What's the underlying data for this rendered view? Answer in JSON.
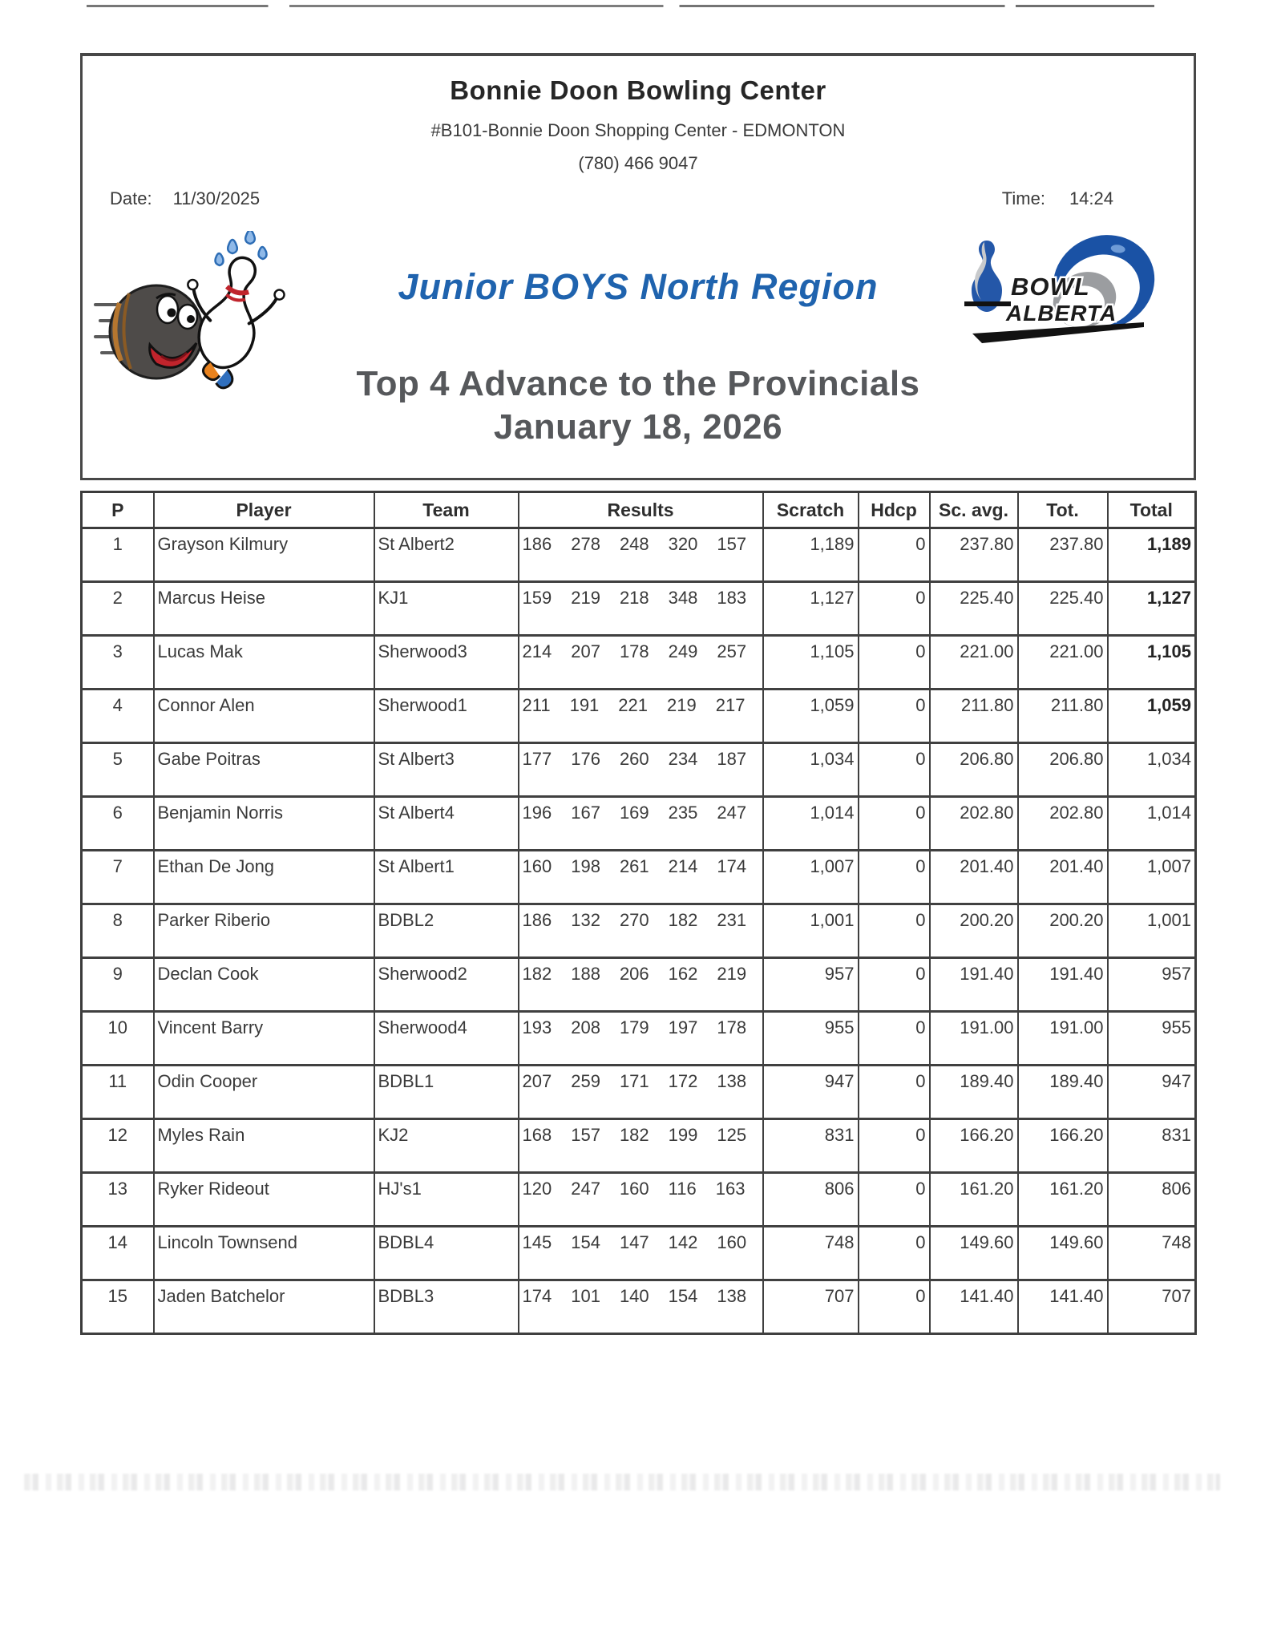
{
  "document": {
    "facility": {
      "name": "Bonnie Doon Bowling Center",
      "address": "#B101-Bonnie Doon Shopping Center - EDMONTON",
      "phone": "(780) 466 9047"
    },
    "meta": {
      "date_label": "Date:",
      "date_value": "11/30/2025",
      "time_label": "Time:",
      "time_value": "14:24"
    },
    "event_title": "Junior BOYS North Region",
    "announcement": {
      "line1": "Top 4 Advance to the Provincials",
      "line2": "January 18, 2026"
    },
    "logo": {
      "line1": "BOWL",
      "line2": "ALBERTA"
    },
    "colors": {
      "event_title_blue": "#1f63ae",
      "announcement_gray": "#56585b",
      "logo_blue": "#1a52a5",
      "logo_gray": "#9b9da0",
      "table_border": "#3f3f3f"
    },
    "table": {
      "columns": [
        "P",
        "Player",
        "Team",
        "Results",
        "Scratch",
        "Hdcp",
        "Sc. avg.",
        "Tot.",
        "Total"
      ],
      "rows": [
        {
          "p": "1",
          "player": "Grayson Kilmury",
          "team": "St Albert2",
          "results": [
            "186",
            "278",
            "248",
            "320",
            "157"
          ],
          "scratch": "1,189",
          "hdcp": "0",
          "sc_avg": "237.80",
          "tot": "237.80",
          "total": "1,189",
          "total_bold": true
        },
        {
          "p": "2",
          "player": "Marcus Heise",
          "team": "KJ1",
          "results": [
            "159",
            "219",
            "218",
            "348",
            "183"
          ],
          "scratch": "1,127",
          "hdcp": "0",
          "sc_avg": "225.40",
          "tot": "225.40",
          "total": "1,127",
          "total_bold": true
        },
        {
          "p": "3",
          "player": "Lucas Mak",
          "team": "Sherwood3",
          "results": [
            "214",
            "207",
            "178",
            "249",
            "257"
          ],
          "scratch": "1,105",
          "hdcp": "0",
          "sc_avg": "221.00",
          "tot": "221.00",
          "total": "1,105",
          "total_bold": true
        },
        {
          "p": "4",
          "player": "Connor Alen",
          "team": "Sherwood1",
          "results": [
            "211",
            "191",
            "221",
            "219",
            "217"
          ],
          "scratch": "1,059",
          "hdcp": "0",
          "sc_avg": "211.80",
          "tot": "211.80",
          "total": "1,059",
          "total_bold": true
        },
        {
          "p": "5",
          "player": "Gabe Poitras",
          "team": "St Albert3",
          "results": [
            "177",
            "176",
            "260",
            "234",
            "187"
          ],
          "scratch": "1,034",
          "hdcp": "0",
          "sc_avg": "206.80",
          "tot": "206.80",
          "total": "1,034",
          "total_bold": false
        },
        {
          "p": "6",
          "player": "Benjamin Norris",
          "team": "St Albert4",
          "results": [
            "196",
            "167",
            "169",
            "235",
            "247"
          ],
          "scratch": "1,014",
          "hdcp": "0",
          "sc_avg": "202.80",
          "tot": "202.80",
          "total": "1,014",
          "total_bold": false
        },
        {
          "p": "7",
          "player": "Ethan De Jong",
          "team": "St Albert1",
          "results": [
            "160",
            "198",
            "261",
            "214",
            "174"
          ],
          "scratch": "1,007",
          "hdcp": "0",
          "sc_avg": "201.40",
          "tot": "201.40",
          "total": "1,007",
          "total_bold": false
        },
        {
          "p": "8",
          "player": "Parker Riberio",
          "team": "BDBL2",
          "results": [
            "186",
            "132",
            "270",
            "182",
            "231"
          ],
          "scratch": "1,001",
          "hdcp": "0",
          "sc_avg": "200.20",
          "tot": "200.20",
          "total": "1,001",
          "total_bold": false
        },
        {
          "p": "9",
          "player": "Declan Cook",
          "team": "Sherwood2",
          "results": [
            "182",
            "188",
            "206",
            "162",
            "219"
          ],
          "scratch": "957",
          "hdcp": "0",
          "sc_avg": "191.40",
          "tot": "191.40",
          "total": "957",
          "total_bold": false
        },
        {
          "p": "10",
          "player": "Vincent Barry",
          "team": "Sherwood4",
          "results": [
            "193",
            "208",
            "179",
            "197",
            "178"
          ],
          "scratch": "955",
          "hdcp": "0",
          "sc_avg": "191.00",
          "tot": "191.00",
          "total": "955",
          "total_bold": false
        },
        {
          "p": "11",
          "player": "Odin Cooper",
          "team": "BDBL1",
          "results": [
            "207",
            "259",
            "171",
            "172",
            "138"
          ],
          "scratch": "947",
          "hdcp": "0",
          "sc_avg": "189.40",
          "tot": "189.40",
          "total": "947",
          "total_bold": false
        },
        {
          "p": "12",
          "player": "Myles Rain",
          "team": "KJ2",
          "results": [
            "168",
            "157",
            "182",
            "199",
            "125"
          ],
          "scratch": "831",
          "hdcp": "0",
          "sc_avg": "166.20",
          "tot": "166.20",
          "total": "831",
          "total_bold": false
        },
        {
          "p": "13",
          "player": "Ryker Rideout",
          "team": "HJ's1",
          "results": [
            "120",
            "247",
            "160",
            "116",
            "163"
          ],
          "scratch": "806",
          "hdcp": "0",
          "sc_avg": "161.20",
          "tot": "161.20",
          "total": "806",
          "total_bold": false
        },
        {
          "p": "14",
          "player": "Lincoln Townsend",
          "team": "BDBL4",
          "results": [
            "145",
            "154",
            "147",
            "142",
            "160"
          ],
          "scratch": "748",
          "hdcp": "0",
          "sc_avg": "149.60",
          "tot": "149.60",
          "total": "748",
          "total_bold": false
        },
        {
          "p": "15",
          "player": "Jaden Batchelor",
          "team": "BDBL3",
          "results": [
            "174",
            "101",
            "140",
            "154",
            "138"
          ],
          "scratch": "707",
          "hdcp": "0",
          "sc_avg": "141.40",
          "tot": "141.40",
          "total": "707",
          "total_bold": false
        }
      ]
    }
  }
}
